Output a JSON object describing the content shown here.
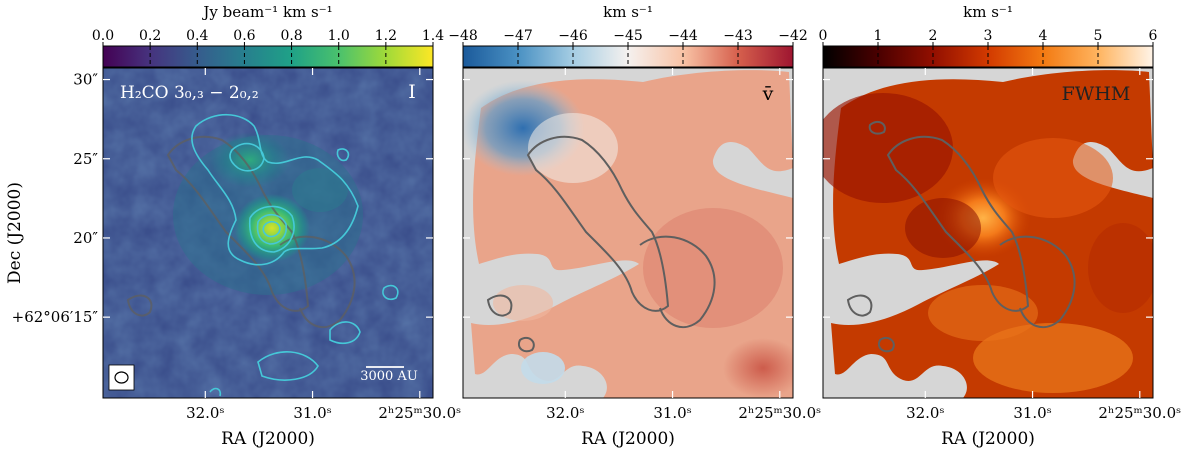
{
  "chart_data": [
    {
      "type": "heatmap",
      "panel_label": "I",
      "title": "H₂CO 3₀,₃ − 2₀,₂",
      "colorbar": {
        "label": "Jy beam⁻¹ km s⁻¹",
        "colormap": "viridis",
        "range": [
          0.0,
          1.4
        ],
        "ticks": [
          "0.0",
          "0.2",
          "0.4",
          "0.6",
          "0.8",
          "1.0",
          "1.2",
          "1.4"
        ]
      },
      "scalebar_label": "3000 AU",
      "xlabel": "RA (J2000)",
      "xticks": [
        "32.0ˢ",
        "31.0ˢ",
        "2ʰ25ᵐ30.0ˢ"
      ],
      "ylabel": "Dec (J2000)",
      "yticks": [
        "30″",
        "25″",
        "20″",
        "+62°06′15″"
      ],
      "contour_color": "#45c8d8"
    },
    {
      "type": "heatmap",
      "panel_label": "v̄",
      "colorbar": {
        "label": "km s⁻¹",
        "colormap": "RdBu_r",
        "range": [
          -48,
          -42
        ],
        "ticks": [
          "−48",
          "−47",
          "−46",
          "−45",
          "−44",
          "−43",
          "−42"
        ]
      },
      "xlabel": "RA (J2000)",
      "xticks": [
        "32.0ˢ",
        "31.0ˢ",
        "2ʰ25ᵐ30.0ˢ"
      ]
    },
    {
      "type": "heatmap",
      "panel_label": "FWHM",
      "colorbar": {
        "label": "km s⁻¹",
        "colormap": "gist_heat",
        "range": [
          0,
          6
        ],
        "ticks": [
          "0",
          "1",
          "2",
          "3",
          "4",
          "5",
          "6"
        ]
      },
      "xlabel": "RA (J2000)",
      "xticks": [
        "32.0ˢ",
        "31.0ˢ",
        "2ʰ25ᵐ30.0ˢ"
      ]
    }
  ],
  "colors": {
    "mask": "#d6d6d6",
    "contour_gray": "#5f5f5f",
    "viridis": [
      "#440154",
      "#46337e",
      "#365c8d",
      "#277f8e",
      "#1fa187",
      "#4ac16d",
      "#a0da39",
      "#fde725"
    ],
    "rdbu": [
      "#1b5a9b",
      "#4a91c3",
      "#a5cde3",
      "#f5f1ef",
      "#f8c3a6",
      "#d6604d",
      "#9e1530"
    ],
    "heat": [
      "#000000",
      "#4a0000",
      "#920f00",
      "#d23a00",
      "#f37a12",
      "#ffb45f",
      "#fff4e8"
    ]
  }
}
